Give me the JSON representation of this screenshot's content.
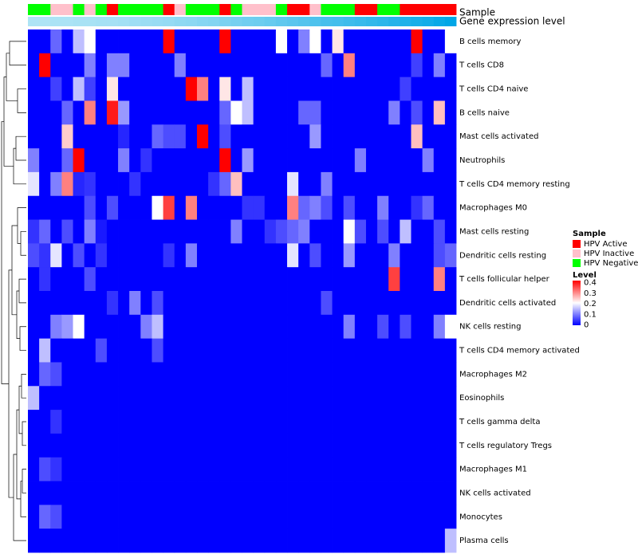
{
  "chart_data": {
    "type": "heatmap",
    "annotation_labels": {
      "sample": "Sample",
      "gene_expression": "Gene expression level"
    },
    "rows": [
      "B cells memory",
      "T cells CD8",
      "T cells CD4 naive",
      "B cells naive",
      "Mast cells activated",
      "Neutrophils",
      "T cells CD4 memory resting",
      "Macrophages M0",
      "Mast cells resting",
      "Dendritic cells resting",
      "T cells follicular helper",
      "Dendritic cells activated",
      "NK cells resting",
      "T cells CD4 memory activated",
      "Macrophages M2",
      "Eosinophils",
      "T cells gamma delta",
      "T cells regulatory  Tregs",
      "Macrophages M1",
      "NK cells activated",
      "Monocytes",
      "Plasma cells"
    ],
    "sample_groups": [
      "N",
      "N",
      "I",
      "I",
      "N",
      "I",
      "N",
      "A",
      "N",
      "N",
      "N",
      "N",
      "A",
      "I",
      "N",
      "N",
      "N",
      "A",
      "N",
      "I",
      "I",
      "I",
      "N",
      "A",
      "A",
      "I",
      "N",
      "N",
      "N",
      "A",
      "A",
      "N",
      "N",
      "A",
      "A",
      "A",
      "A",
      "A"
    ],
    "gene_expression_levels": [
      0.02,
      0.02,
      0.03,
      0.03,
      0.04,
      0.04,
      0.05,
      0.05,
      0.06,
      0.07,
      0.08,
      0.09,
      0.1,
      0.12,
      0.13,
      0.15,
      0.16,
      0.18,
      0.2,
      0.22,
      0.23,
      0.25,
      0.27,
      0.29,
      0.31,
      0.33,
      0.35,
      0.36,
      0.38,
      0.4,
      0.42,
      0.44,
      0.46,
      0.48,
      0.5,
      0.52,
      0.55,
      0.58
    ],
    "values": [
      [
        0.0,
        0.0,
        0.08,
        0.0,
        0.15,
        0.2,
        0.0,
        0.0,
        0.0,
        0.0,
        0.0,
        0.0,
        0.4,
        0.0,
        0.0,
        0.0,
        0.0,
        0.4,
        0.0,
        0.0,
        0.0,
        0.0,
        0.2,
        0.0,
        0.1,
        0.2,
        0.0,
        0.22,
        0.0,
        0.0,
        0.0,
        0.0,
        0.0,
        0.0,
        0.4,
        0.0,
        0.0,
        0.2
      ],
      [
        0.0,
        0.4,
        0.0,
        0.0,
        0.0,
        0.1,
        0.0,
        0.1,
        0.1,
        0.0,
        0.0,
        0.0,
        0.0,
        0.1,
        0.0,
        0.0,
        0.0,
        0.0,
        0.0,
        0.0,
        0.0,
        0.0,
        0.0,
        0.0,
        0.0,
        0.0,
        0.08,
        0.0,
        0.3,
        0.0,
        0.0,
        0.0,
        0.0,
        0.0,
        0.05,
        0.0,
        0.1,
        0.0
      ],
      [
        0.0,
        0.0,
        0.05,
        0.0,
        0.15,
        0.05,
        0.0,
        0.22,
        0.0,
        0.0,
        0.0,
        0.0,
        0.0,
        0.0,
        0.4,
        0.3,
        0.0,
        0.22,
        0.0,
        0.15,
        0.0,
        0.0,
        0.0,
        0.0,
        0.0,
        0.0,
        0.0,
        0.0,
        0.0,
        0.0,
        0.0,
        0.0,
        0.0,
        0.05,
        0.0,
        0.0,
        0.0,
        0.0
      ],
      [
        0.0,
        0.0,
        0.0,
        0.08,
        0.0,
        0.3,
        0.0,
        0.38,
        0.12,
        0.0,
        0.0,
        0.0,
        0.0,
        0.0,
        0.0,
        0.0,
        0.0,
        0.08,
        0.2,
        0.15,
        0.0,
        0.0,
        0.0,
        0.0,
        0.08,
        0.08,
        0.0,
        0.0,
        0.0,
        0.0,
        0.0,
        0.0,
        0.1,
        0.0,
        0.06,
        0.0,
        0.25,
        0.0
      ],
      [
        0.0,
        0.0,
        0.0,
        0.24,
        0.0,
        0.0,
        0.0,
        0.0,
        0.03,
        0.0,
        0.0,
        0.08,
        0.06,
        0.06,
        0.0,
        0.4,
        0.0,
        0.06,
        0.0,
        0.0,
        0.0,
        0.0,
        0.0,
        0.0,
        0.0,
        0.12,
        0.0,
        0.0,
        0.0,
        0.0,
        0.0,
        0.0,
        0.0,
        0.0,
        0.25,
        0.0,
        0.0,
        0.0
      ],
      [
        0.1,
        0.0,
        0.0,
        0.08,
        0.4,
        0.0,
        0.0,
        0.0,
        0.1,
        0.0,
        0.04,
        0.0,
        0.0,
        0.0,
        0.0,
        0.0,
        0.0,
        0.4,
        0.0,
        0.12,
        0.0,
        0.0,
        0.0,
        0.0,
        0.0,
        0.0,
        0.0,
        0.0,
        0.0,
        0.1,
        0.0,
        0.0,
        0.0,
        0.0,
        0.0,
        0.1,
        0.0,
        0.0
      ],
      [
        0.18,
        0.0,
        0.1,
        0.3,
        0.03,
        0.04,
        0.0,
        0.0,
        0.0,
        0.04,
        0.0,
        0.0,
        0.0,
        0.0,
        0.0,
        0.0,
        0.04,
        0.08,
        0.25,
        0.0,
        0.0,
        0.0,
        0.0,
        0.18,
        0.0,
        0.0,
        0.1,
        0.0,
        0.0,
        0.0,
        0.0,
        0.0,
        0.0,
        0.0,
        0.0,
        0.0,
        0.0,
        0.0
      ],
      [
        0.0,
        0.0,
        0.0,
        0.0,
        0.0,
        0.06,
        0.0,
        0.06,
        0.0,
        0.0,
        0.0,
        0.2,
        0.35,
        0.0,
        0.3,
        0.0,
        0.0,
        0.0,
        0.0,
        0.04,
        0.04,
        0.0,
        0.0,
        0.3,
        0.08,
        0.1,
        0.06,
        0.0,
        0.06,
        0.0,
        0.0,
        0.1,
        0.0,
        0.0,
        0.04,
        0.08,
        0.0,
        0.0
      ],
      [
        0.04,
        0.08,
        0.0,
        0.06,
        0.0,
        0.1,
        0.02,
        0.0,
        0.0,
        0.0,
        0.0,
        0.0,
        0.0,
        0.0,
        0.0,
        0.0,
        0.0,
        0.0,
        0.1,
        0.0,
        0.0,
        0.04,
        0.06,
        0.08,
        0.1,
        0.0,
        0.0,
        0.0,
        0.2,
        0.06,
        0.0,
        0.06,
        0.0,
        0.15,
        0.0,
        0.0,
        0.06,
        0.0
      ],
      [
        0.06,
        0.04,
        0.18,
        0.0,
        0.06,
        0.0,
        0.04,
        0.0,
        0.0,
        0.0,
        0.0,
        0.0,
        0.04,
        0.0,
        0.1,
        0.0,
        0.0,
        0.0,
        0.0,
        0.0,
        0.0,
        0.0,
        0.0,
        0.18,
        0.0,
        0.06,
        0.0,
        0.0,
        0.12,
        0.0,
        0.0,
        0.0,
        0.1,
        0.0,
        0.0,
        0.0,
        0.06,
        0.08
      ],
      [
        0.0,
        0.04,
        0.0,
        0.0,
        0.0,
        0.06,
        0.0,
        0.0,
        0.0,
        0.0,
        0.0,
        0.0,
        0.0,
        0.0,
        0.0,
        0.0,
        0.0,
        0.0,
        0.0,
        0.0,
        0.0,
        0.0,
        0.0,
        0.0,
        0.0,
        0.0,
        0.0,
        0.0,
        0.0,
        0.0,
        0.0,
        0.0,
        0.35,
        0.0,
        0.0,
        0.0,
        0.3,
        0.0
      ],
      [
        0.0,
        0.0,
        0.0,
        0.0,
        0.0,
        0.0,
        0.0,
        0.04,
        0.0,
        0.1,
        0.0,
        0.06,
        0.0,
        0.0,
        0.0,
        0.0,
        0.0,
        0.0,
        0.0,
        0.0,
        0.0,
        0.0,
        0.0,
        0.0,
        0.0,
        0.0,
        0.06,
        0.0,
        0.0,
        0.0,
        0.0,
        0.0,
        0.0,
        0.0,
        0.0,
        0.0,
        0.0,
        0.0
      ],
      [
        0.0,
        0.0,
        0.1,
        0.12,
        0.2,
        0.0,
        0.0,
        0.0,
        0.0,
        0.0,
        0.1,
        0.15,
        0.0,
        0.0,
        0.0,
        0.0,
        0.0,
        0.0,
        0.0,
        0.0,
        0.0,
        0.0,
        0.0,
        0.0,
        0.0,
        0.0,
        0.0,
        0.0,
        0.1,
        0.0,
        0.0,
        0.06,
        0.0,
        0.06,
        0.0,
        0.0,
        0.1,
        0.2
      ],
      [
        0.0,
        0.15,
        0.0,
        0.0,
        0.0,
        0.0,
        0.06,
        0.0,
        0.0,
        0.0,
        0.0,
        0.06,
        0.0,
        0.0,
        0.0,
        0.0,
        0.0,
        0.0,
        0.0,
        0.0,
        0.0,
        0.0,
        0.0,
        0.0,
        0.0,
        0.0,
        0.0,
        0.0,
        0.0,
        0.0,
        0.0,
        0.0,
        0.0,
        0.0,
        0.0,
        0.0,
        0.0,
        0.0
      ],
      [
        0.0,
        0.08,
        0.06,
        0.0,
        0.0,
        0.0,
        0.0,
        0.0,
        0.0,
        0.0,
        0.0,
        0.0,
        0.0,
        0.0,
        0.0,
        0.0,
        0.0,
        0.0,
        0.0,
        0.0,
        0.0,
        0.0,
        0.0,
        0.0,
        0.0,
        0.0,
        0.0,
        0.0,
        0.0,
        0.0,
        0.0,
        0.0,
        0.0,
        0.0,
        0.0,
        0.0,
        0.0,
        0.0
      ],
      [
        0.15,
        0.0,
        0.0,
        0.0,
        0.0,
        0.0,
        0.0,
        0.0,
        0.0,
        0.0,
        0.0,
        0.0,
        0.0,
        0.0,
        0.0,
        0.0,
        0.0,
        0.0,
        0.0,
        0.0,
        0.0,
        0.0,
        0.0,
        0.0,
        0.0,
        0.0,
        0.0,
        0.0,
        0.0,
        0.0,
        0.0,
        0.0,
        0.0,
        0.0,
        0.0,
        0.0,
        0.0,
        0.0
      ],
      [
        0.0,
        0.0,
        0.04,
        0.0,
        0.0,
        0.0,
        0.0,
        0.0,
        0.0,
        0.0,
        0.0,
        0.0,
        0.0,
        0.0,
        0.0,
        0.0,
        0.0,
        0.0,
        0.0,
        0.0,
        0.0,
        0.0,
        0.0,
        0.0,
        0.0,
        0.0,
        0.0,
        0.0,
        0.0,
        0.0,
        0.0,
        0.0,
        0.0,
        0.0,
        0.0,
        0.0,
        0.0,
        0.0
      ],
      [
        0.0,
        0.0,
        0.0,
        0.0,
        0.0,
        0.0,
        0.0,
        0.0,
        0.0,
        0.0,
        0.0,
        0.0,
        0.0,
        0.0,
        0.0,
        0.0,
        0.0,
        0.0,
        0.0,
        0.0,
        0.0,
        0.0,
        0.0,
        0.0,
        0.0,
        0.0,
        0.0,
        0.0,
        0.0,
        0.0,
        0.0,
        0.0,
        0.0,
        0.0,
        0.0,
        0.0,
        0.0,
        0.0
      ],
      [
        0.0,
        0.06,
        0.04,
        0.0,
        0.0,
        0.0,
        0.0,
        0.0,
        0.0,
        0.0,
        0.0,
        0.0,
        0.0,
        0.0,
        0.0,
        0.0,
        0.0,
        0.0,
        0.0,
        0.0,
        0.0,
        0.0,
        0.0,
        0.0,
        0.0,
        0.0,
        0.0,
        0.0,
        0.0,
        0.0,
        0.0,
        0.0,
        0.0,
        0.0,
        0.0,
        0.0,
        0.0,
        0.0
      ],
      [
        0.0,
        0.0,
        0.0,
        0.0,
        0.0,
        0.0,
        0.0,
        0.0,
        0.0,
        0.0,
        0.0,
        0.0,
        0.0,
        0.0,
        0.0,
        0.0,
        0.0,
        0.0,
        0.0,
        0.0,
        0.0,
        0.0,
        0.0,
        0.0,
        0.0,
        0.0,
        0.0,
        0.0,
        0.0,
        0.0,
        0.0,
        0.0,
        0.0,
        0.0,
        0.0,
        0.0,
        0.0,
        0.0
      ],
      [
        0.0,
        0.08,
        0.06,
        0.0,
        0.0,
        0.0,
        0.0,
        0.0,
        0.0,
        0.0,
        0.0,
        0.0,
        0.0,
        0.0,
        0.0,
        0.0,
        0.0,
        0.0,
        0.0,
        0.0,
        0.0,
        0.0,
        0.0,
        0.0,
        0.0,
        0.0,
        0.0,
        0.0,
        0.0,
        0.0,
        0.0,
        0.0,
        0.0,
        0.0,
        0.0,
        0.0,
        0.0,
        0.0
      ],
      [
        0.0,
        0.0,
        0.0,
        0.0,
        0.0,
        0.0,
        0.0,
        0.0,
        0.0,
        0.0,
        0.0,
        0.0,
        0.0,
        0.0,
        0.0,
        0.0,
        0.0,
        0.0,
        0.0,
        0.0,
        0.0,
        0.0,
        0.0,
        0.0,
        0.0,
        0.0,
        0.0,
        0.0,
        0.0,
        0.0,
        0.0,
        0.0,
        0.0,
        0.0,
        0.0,
        0.0,
        0.0,
        0.15
      ]
    ],
    "legend": {
      "sample_title": "Sample",
      "sample_items": [
        {
          "key": "A",
          "label": "HPV Active",
          "color": "#ff0000"
        },
        {
          "key": "I",
          "label": "HPV Inactive",
          "color": "#ffc0cb"
        },
        {
          "key": "N",
          "label": "HPV Negative",
          "color": "#00ff00"
        }
      ],
      "level_title": "Level",
      "level_ticks": [
        "0.4",
        "0.3",
        "0.2",
        "0.1",
        "0"
      ],
      "level_range": [
        0,
        0.4
      ],
      "placement": "right"
    },
    "colors": {
      "low": "#0000ff",
      "mid": "#ffffff",
      "high": "#ff0000",
      "gene_low": "#aee4f5",
      "gene_high": "#00a6e6"
    }
  }
}
